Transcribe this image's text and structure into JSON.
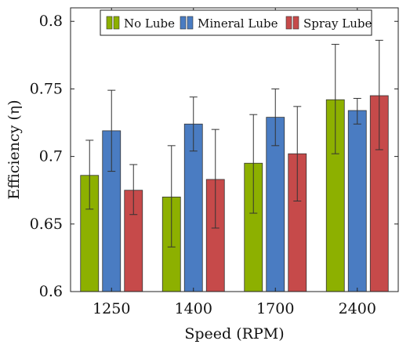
{
  "chart_data": {
    "type": "bar",
    "xlabel": "Speed (RPM)",
    "ylabel": "Efficiency (η)",
    "categories": [
      "1250",
      "1400",
      "1700",
      "2400"
    ],
    "ylim": [
      0.6,
      0.81
    ],
    "yticks": [
      "0.6",
      "0.65",
      "0.7",
      "0.75",
      "0.8"
    ],
    "ytick_values": [
      0.6,
      0.65,
      0.7,
      0.75,
      0.8
    ],
    "legend_position": "top-center",
    "series": [
      {
        "name": "No Lube",
        "color": "#8db000",
        "values": [
          0.686,
          0.67,
          0.695,
          0.742
        ],
        "err_low": [
          0.661,
          0.633,
          0.658,
          0.702
        ],
        "err_high": [
          0.712,
          0.708,
          0.731,
          0.783
        ]
      },
      {
        "name": "Mineral Lube",
        "color": "#4a7cc2",
        "values": [
          0.719,
          0.724,
          0.729,
          0.734
        ],
        "err_low": [
          0.689,
          0.704,
          0.708,
          0.724
        ],
        "err_high": [
          0.749,
          0.744,
          0.75,
          0.743
        ]
      },
      {
        "name": "Spray Lube",
        "color": "#c64a4a",
        "values": [
          0.675,
          0.683,
          0.702,
          0.745
        ],
        "err_low": [
          0.657,
          0.647,
          0.667,
          0.705
        ],
        "err_high": [
          0.694,
          0.72,
          0.737,
          0.786
        ]
      }
    ]
  }
}
